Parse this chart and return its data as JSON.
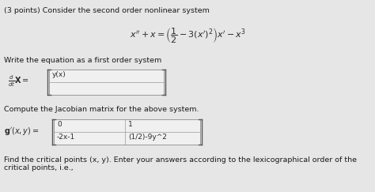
{
  "background_color": "#e6e6e6",
  "title_text": "(3 points) Consider the second order nonlinear system",
  "section1_label": "Write the equation as a first order system",
  "matrix1_row1": "y(x)",
  "matrix1_row2": "",
  "section2_label": "Compute the Jacobian matrix for the above system.",
  "matrix2_r1c1": "0",
  "matrix2_r1c2": "1",
  "matrix2_r2c1": "-2x-1",
  "matrix2_r2c2": "(1/2)-9y^2",
  "section3_label": "Find the critical points (x, y). Enter your answers according to the lexicographical order of the critical points, i.e.,",
  "box_fill": "#f0f0f0",
  "box_border": "#999999",
  "text_color": "#2a2a2a",
  "label_color": "#1a1a1a",
  "bracket_color": "#555555",
  "fontsize_title": 6.8,
  "fontsize_section": 6.8,
  "fontsize_eq": 8.0,
  "fontsize_cell": 6.5,
  "fontsize_label": 7.0
}
